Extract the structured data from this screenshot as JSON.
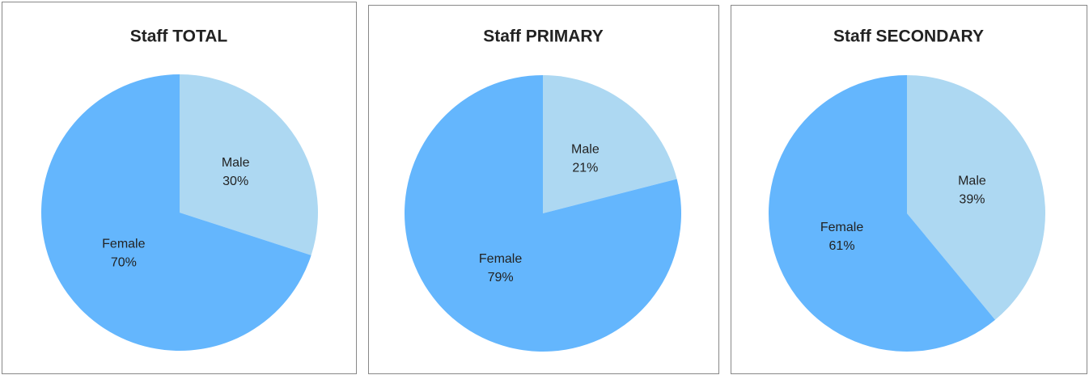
{
  "chart_data": [
    {
      "type": "pie",
      "title": "Staff TOTAL",
      "categories": [
        "Male",
        "Female"
      ],
      "values": [
        30,
        70
      ],
      "value_labels": [
        "30%",
        "70%"
      ],
      "colors": [
        "#add8f2",
        "#64b6fd"
      ]
    },
    {
      "type": "pie",
      "title": "Staff PRIMARY",
      "categories": [
        "Male",
        "Female"
      ],
      "values": [
        21,
        79
      ],
      "value_labels": [
        "21%",
        "79%"
      ],
      "colors": [
        "#add8f2",
        "#64b6fd"
      ]
    },
    {
      "type": "pie",
      "title": "Staff SECONDARY",
      "categories": [
        "Male",
        "Female"
      ],
      "values": [
        39,
        61
      ],
      "value_labels": [
        "39%",
        "61%"
      ],
      "colors": [
        "#add8f2",
        "#64b6fd"
      ]
    }
  ]
}
